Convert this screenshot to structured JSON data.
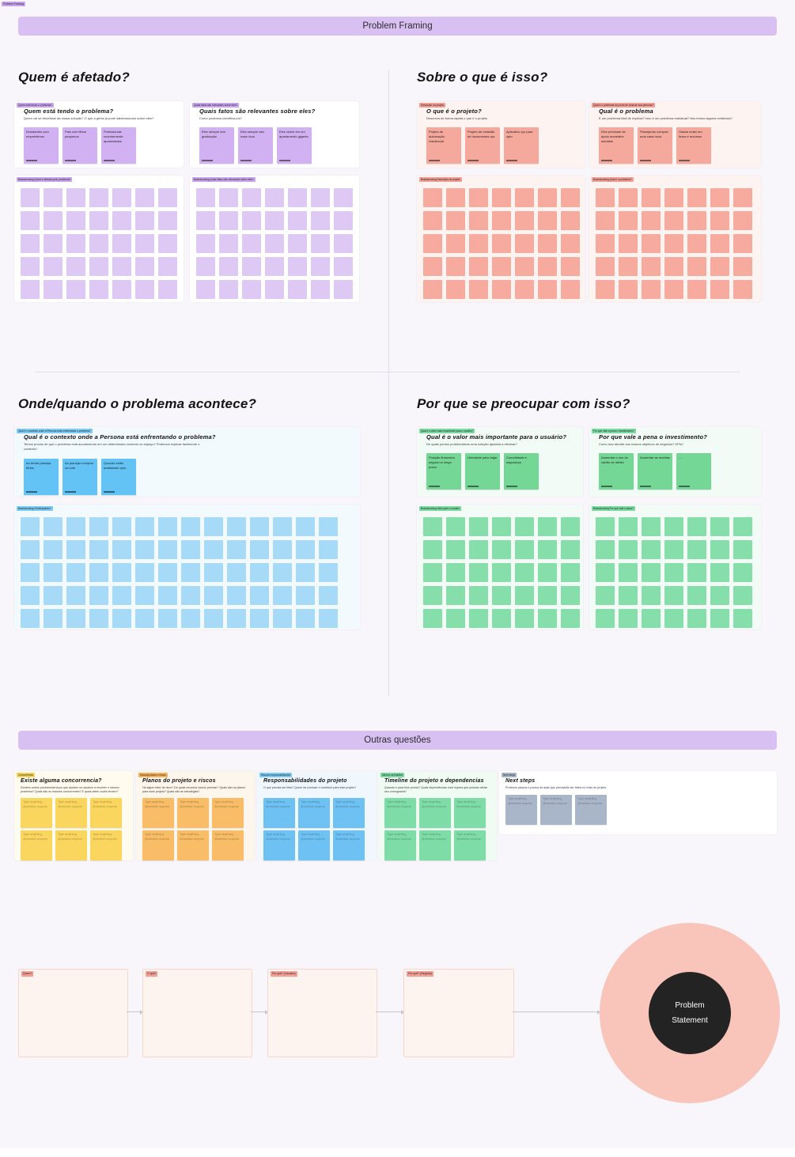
{
  "corner_tag": "Problem Framing",
  "banner": {
    "title": "Problem Framing"
  },
  "banner2": {
    "title": "Outras questões"
  },
  "headings": {
    "who": "Quem é afetado?",
    "what": "Sobre o que é isso?",
    "where": "Onde/quando o problema acontece?",
    "why": "Por que se preocupar com isso?"
  },
  "cards": {
    "who1": {
      "tag": "Quem está tendo o problema?",
      "title": "Quem está tendo o problema?",
      "subtitle": "Quem vai se beneficiar da nossa solução? O que a gente já pode saber/assumir sobre eles?",
      "stickies": [
        "Estudantes com empréstimos",
        "Pais com filhos pequenos",
        "Profissionais recentemente aposentados"
      ]
    },
    "who2": {
      "tag": "Quais fatos são relevantes sobre eles?",
      "title": "Quais fatos são relevantes sobre eles?",
      "subtitle": "Como podemos identificá-los?",
      "stickies": [
        "Eles sempre tem graduação",
        "Eles sempre são mais ricos",
        "Eles vivem em um apartamento gigante"
      ]
    },
    "what1": {
      "tag": "Descrição do projeto",
      "title": "O que é o projeto?",
      "subtitle": "Descreva de forma rápida o que é o projeto",
      "stickies": [
        "Projeto de automação residencial",
        "Projeto de emissão de documentos xyz",
        "Aplicativo xyz para xpto"
      ]
    },
    "what2": {
      "tag": "Qual é o problema do ponto de vista de sua persona?",
      "title": "Qual é o problema",
      "subtitle": "É um problema fácil de explicar? Isso é um problema real/atual? Nós temos alguma evidencia?",
      "stickies": [
        "Eles precisam de apoio monetário imediato",
        "Planejando comprar uma casa nova",
        "Gastar muito em livros e recursos"
      ]
    },
    "where1": {
      "tag": "Qual é o contexto onde a Persona está enfrentando o problema?",
      "title": "Qual é o contexto onde a Persona está enfrentando o problema?",
      "subtitle": "Temos provas de que o problema está acontecendo em um determinado contexto ou espaço? Podemos explicar facilmente o contexto?",
      "stickies": [
        "Ao tentar planejar férias",
        "Ao planejar comprar um lote",
        "Quando estão analisando xpto"
      ]
    },
    "why1": {
      "tag": "Qual é o valor mais importante para o usuário?",
      "title": "Qual é o valor mais importante para o usuário?",
      "subtitle": "De quais pontos problemáticos uma solução ajudaria a eliminar?",
      "stickies": [
        "Posição financeira segura no longo prazo",
        "Liberdade para viajar",
        "Comodidade e segurança"
      ]
    },
    "why2": {
      "tag": "Por que vale a pena o investimento?",
      "title": "Por que vale a pena o investimento?",
      "subtitle": "Como isso atende aos nossos objetivos de negócios? KPIs?",
      "stickies": [
        "Aumentar o uso do cartão de débito",
        "Aumentar as receitas",
        "..."
      ]
    }
  },
  "grids": {
    "who1": {
      "label": "Brainstorming Quem é afetado pelo problema?",
      "cols": 7,
      "rows": 5
    },
    "who2": {
      "label": "Brainstorming Quais fatos são relevantes sobre eles?",
      "cols": 7,
      "rows": 5
    },
    "what1": {
      "label": "Brainstorming Descrição do projeto",
      "cols": 7,
      "rows": 5
    },
    "what2": {
      "label": "Brainstorming Qual é o problema?",
      "cols": 7,
      "rows": 5
    },
    "where1": {
      "label": "Brainstorming Onde/quando?",
      "cols": 14,
      "rows": 5
    },
    "why1": {
      "label": "Brainstorming Valor para o usuário",
      "cols": 7,
      "rows": 5
    },
    "why2": {
      "label": "Brainstorming Por que vale a pena?",
      "cols": 7,
      "rows": 5
    }
  },
  "questions": {
    "competition": {
      "tag": "Concorrência",
      "title": "Existe alguma concorrencia?",
      "subtitle": "Existem outros produtos/serviços que ajudam os usuários a resolver o mesmo problema? Quais são os maiores concorrentes? E quais deles vocês temem?",
      "sticky_text": "Type anything, @mention anyone",
      "count": 6
    },
    "plans": {
      "tag": "Discuta planos e riscos",
      "title": "Planos do projeto e riscos",
      "subtitle": "Há algum fator de risco? De quais recursos vamos precisar? Quais são os planos para esse projeto? Quais são as estratégias?",
      "sticky_text": "Type anything, @mention anyone",
      "count": 6
    },
    "responsibilities": {
      "tag": "Discuta responsabilidades",
      "title": "Responsabilidades do projeto",
      "subtitle": "O que precisa ser feito? Quem irá conduzir e contribuir para este projeto?",
      "sticky_text": "Type anything, @mention anyone",
      "count": 6
    },
    "timeline": {
      "tag": "Alinhar na timeline",
      "title": "Timeline do projeto e dependencias",
      "subtitle": "Quando é para ficar pronto? Quais dependências você espera que possam afetar seu cronograma?",
      "sticky_text": "Type anything, @mention anyone",
      "count": 6
    },
    "next": {
      "tag": "Next steps",
      "title": "Next steps",
      "subtitle": "Próximos passos e pontos de ação que precisarão ser feitos no resto do projeto",
      "sticky_text": "Type anything, @mention anyone",
      "count": 3
    }
  },
  "flow": {
    "steps": [
      "Quem?",
      "O quê?",
      "Por quê? (Usuário)",
      "Por quê? (Negócio)"
    ],
    "circle": "Problem Statement"
  },
  "colors": {
    "canvas": "#f8f6fb",
    "divider": "#e0dde6",
    "purple_banner": "#d9c0f2",
    "purple_tag": "#c9a5ee",
    "purple_sticky": "#d2b1f2",
    "purple_grid": "#ddc9f4",
    "red_tag": "#f2a095",
    "red_sticky": "#f5a89c",
    "red_bg": "#fdf4f1",
    "red_grid": "#f7ab9f",
    "blue_tag": "#7ecbf5",
    "blue_sticky": "#64c3f5",
    "blue_bg": "#f2fafe",
    "blue_grid": "#a7daf6",
    "green_tag": "#7bd9a2",
    "green_sticky": "#74d795",
    "green_bg": "#f2fbf5",
    "green_grid": "#86dfab",
    "yellow_tag": "#f7d35c",
    "yellow_sticky": "#fbd65f",
    "yellow_bg": "#fffbee",
    "orange_tag": "#f5b45c",
    "orange_sticky": "#f8bd66",
    "orange_bg": "#fdf6ec",
    "respblue_sticky": "#6ec2f3",
    "respblue_bg": "#f0f8fe",
    "timeline_sticky": "#7edda6",
    "timeline_bg": "#f0fbf4",
    "gray_tag": "#aab7ca",
    "gray_sticky": "#a9b6c9",
    "flow_bg": "#fdf3ef",
    "flow_border": "#f6d7cd",
    "circle_pink": "#f9c4ba",
    "circle_dark": "#232323"
  }
}
